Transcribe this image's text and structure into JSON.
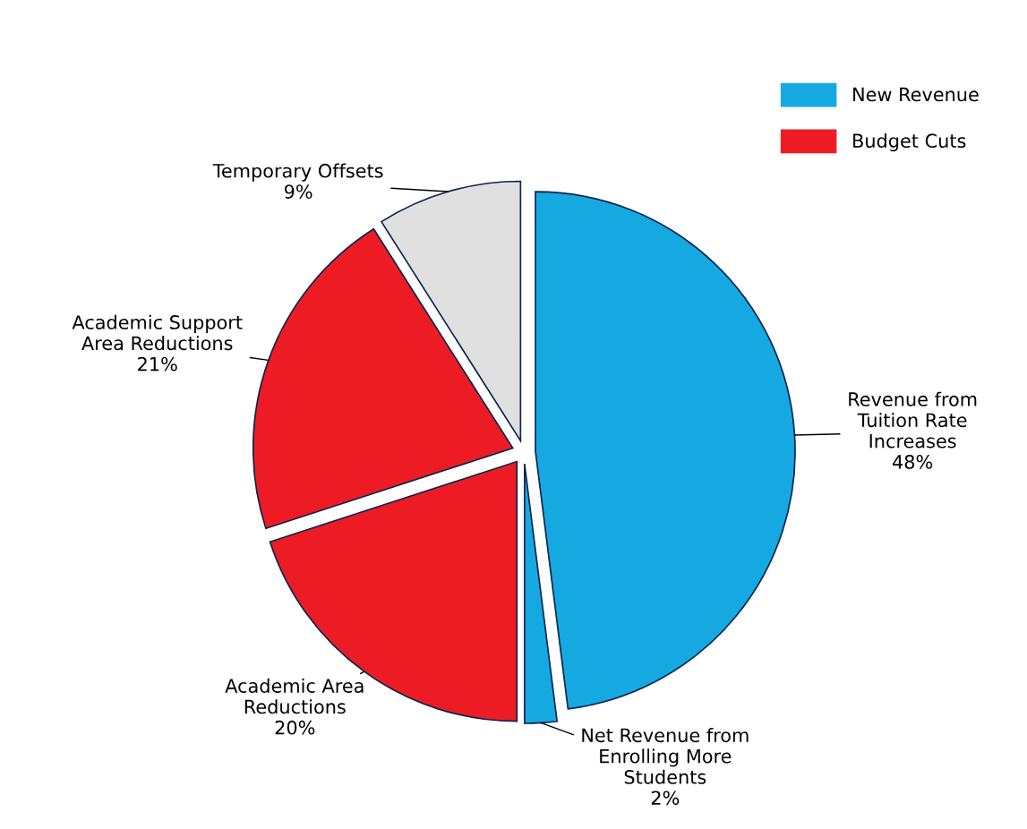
{
  "chart_data": {
    "type": "pie",
    "categories": [
      "Revenue from\nTuition Rate\nIncreases",
      "Net Revenue from\nEnrolling More\nStudents",
      "Academic Area\nReductions",
      "Academic Support\nArea Reductions",
      "Temporary Offsets"
    ],
    "values": [
      48,
      2,
      20,
      21,
      9
    ],
    "colors": [
      "#16a9e1",
      "#16a9e1",
      "#ed1c24",
      "#ed1c24",
      "#e0e0e0"
    ],
    "value_labels": [
      "48%",
      "2%",
      "20%",
      "21%",
      "9%"
    ],
    "annotations": [
      "New Revenue",
      "Budget Cuts"
    ]
  }
}
